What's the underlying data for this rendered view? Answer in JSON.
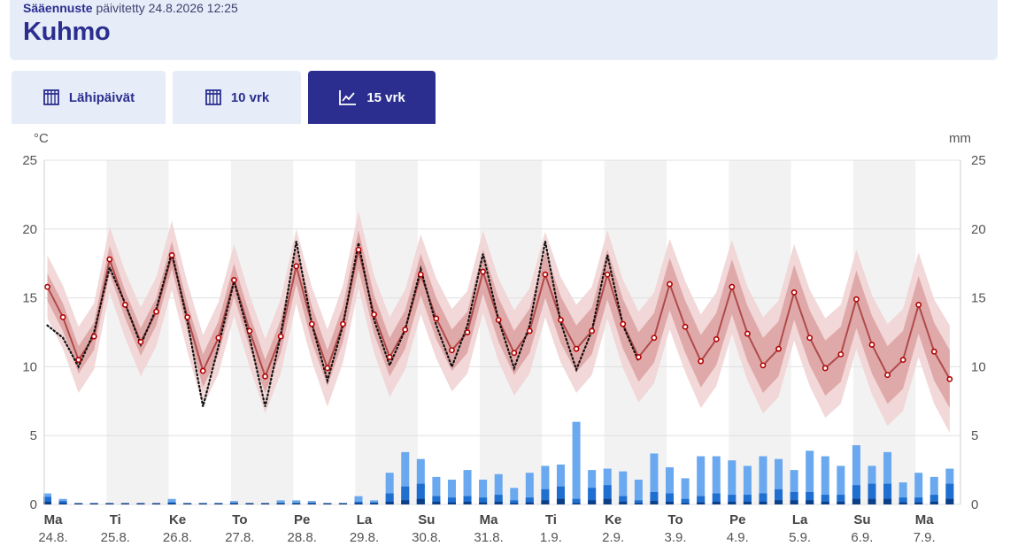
{
  "header": {
    "label": "Sääennuste",
    "updated": "päivitetty 24.8.2026 12:25",
    "location": "Kuhmo"
  },
  "tabs": [
    {
      "label": "Lähipäivät",
      "icon": "calendar-icon",
      "active": false
    },
    {
      "label": "10 vrk",
      "icon": "calendar-icon",
      "active": false
    },
    {
      "label": "15 vrk",
      "icon": "line-chart-icon",
      "active": true
    }
  ],
  "colors": {
    "accent": "#2b2e8f",
    "tab_bg": "#e6edf8",
    "temp_line": "#b04a4a",
    "band_inner": "#d99a9a",
    "band_outer": "#f1d4d4",
    "precip_light": "#6aa8ef",
    "precip_mid": "#1f6fd1",
    "precip_dark": "#0d3f87",
    "weekend_shade": "#f2f2f2"
  },
  "chart_data": {
    "type": "line",
    "left_unit": "°C",
    "right_unit": "mm",
    "ylim": [
      0,
      25
    ],
    "yticks": [
      0,
      5,
      10,
      15,
      20,
      25
    ],
    "grid": true,
    "days": [
      {
        "name": "Ma",
        "date": "24.8."
      },
      {
        "name": "Ti",
        "date": "25.8."
      },
      {
        "name": "Ke",
        "date": "26.8."
      },
      {
        "name": "To",
        "date": "27.8."
      },
      {
        "name": "Pe",
        "date": "28.8."
      },
      {
        "name": "La",
        "date": "29.8."
      },
      {
        "name": "Su",
        "date": "30.8."
      },
      {
        "name": "Ma",
        "date": "31.8."
      },
      {
        "name": "Ti",
        "date": "1.9."
      },
      {
        "name": "Ke",
        "date": "2.9."
      },
      {
        "name": "To",
        "date": "3.9."
      },
      {
        "name": "Pe",
        "date": "4.9."
      },
      {
        "name": "La",
        "date": "5.9."
      },
      {
        "name": "Su",
        "date": "6.9."
      },
      {
        "name": "Ma",
        "date": "7.9."
      }
    ],
    "temperature_median": {
      "x_days": [
        0.05,
        0.3,
        0.55,
        0.8,
        1.05,
        1.3,
        1.55,
        1.8,
        2.05,
        2.3,
        2.55,
        2.8,
        3.05,
        3.3,
        3.55,
        3.8,
        4.05,
        4.3,
        4.55,
        4.8,
        5.05,
        5.3,
        5.55,
        5.8,
        6.05,
        6.3,
        6.55,
        6.8,
        7.05,
        7.3,
        7.55,
        7.8,
        8.05,
        8.3,
        8.55,
        8.8,
        9.05,
        9.3,
        9.55,
        9.8,
        10.05,
        10.3,
        10.55,
        10.8,
        11.05,
        11.3,
        11.55,
        11.8,
        12.05,
        12.3,
        12.55,
        12.8,
        13.05,
        13.3,
        13.55,
        13.8,
        14.05,
        14.3,
        14.55
      ],
      "values": [
        15.8,
        13.6,
        10.5,
        12.2,
        17.8,
        14.5,
        11.8,
        14.0,
        18.1,
        13.6,
        9.7,
        12.1,
        16.3,
        12.6,
        9.3,
        12.2,
        17.3,
        13.1,
        9.9,
        13.1,
        18.5,
        13.8,
        10.7,
        12.7,
        16.7,
        13.5,
        11.2,
        12.5,
        16.9,
        13.4,
        11.0,
        12.6,
        16.7,
        13.4,
        11.3,
        12.6,
        16.7,
        13.1,
        10.7,
        12.1,
        16.0,
        12.9,
        10.4,
        12.0,
        15.8,
        12.4,
        10.1,
        11.3,
        15.4,
        12.1,
        9.9,
        10.9,
        14.9,
        11.6,
        9.4,
        10.5,
        14.5,
        11.1,
        9.1
      ]
    },
    "temperature_observed_dotted": {
      "x_days": [
        0.05,
        0.3,
        0.55,
        0.8,
        1.05,
        1.3,
        1.55,
        1.8,
        2.05,
        2.3,
        2.55,
        2.8,
        3.05,
        3.3,
        3.55,
        3.8,
        4.05,
        4.3,
        4.55,
        4.8,
        5.05,
        5.3,
        5.55,
        5.8,
        6.05,
        6.3,
        6.55,
        6.8,
        7.05,
        7.3,
        7.55,
        7.8,
        8.05,
        8.3,
        8.55,
        8.8,
        9.05,
        9.3,
        9.55
      ],
      "values": [
        13.0,
        12.1,
        10.0,
        12.5,
        17.2,
        14.6,
        11.6,
        14.2,
        18.3,
        13.3,
        7.1,
        11.5,
        16.2,
        12.1,
        7.1,
        12.3,
        19.1,
        13.1,
        9.0,
        13.0,
        19.0,
        13.4,
        10.1,
        12.7,
        17.1,
        13.0,
        10.0,
        13.0,
        18.2,
        13.4,
        9.9,
        13.0,
        19.1,
        13.2,
        9.8,
        12.6,
        18.1,
        13.0,
        10.4
      ]
    },
    "band_inner_halfwidth": [
      1.0,
      1.0,
      1.0,
      1.0,
      1.0,
      1.0,
      1.0,
      1.0,
      1.0,
      1.0,
      1.2,
      1.2,
      1.2,
      1.2,
      1.2,
      1.2,
      1.3,
      1.3,
      1.3,
      1.3,
      1.4,
      1.4,
      1.4,
      1.4,
      1.5,
      1.5,
      1.5,
      1.5,
      1.6,
      1.6,
      1.6,
      1.6,
      1.7,
      1.7,
      1.7,
      1.7,
      1.8,
      1.8,
      1.8,
      1.8,
      1.9,
      1.9,
      1.9,
      1.9,
      2.0,
      2.0,
      2.0,
      2.0,
      2.0,
      2.0,
      2.0,
      2.0,
      2.1,
      2.1,
      2.1,
      2.1,
      2.1,
      2.1,
      2.1
    ],
    "band_outer_halfwidth": [
      2.3,
      2.3,
      2.4,
      2.4,
      2.4,
      2.4,
      2.5,
      2.5,
      2.5,
      2.5,
      2.6,
      2.6,
      2.6,
      2.6,
      2.7,
      2.7,
      2.7,
      2.7,
      2.8,
      2.8,
      2.8,
      2.8,
      2.9,
      2.9,
      2.9,
      2.9,
      3.0,
      3.0,
      3.0,
      3.0,
      3.1,
      3.1,
      3.1,
      3.1,
      3.2,
      3.2,
      3.2,
      3.2,
      3.3,
      3.3,
      3.3,
      3.3,
      3.4,
      3.4,
      3.4,
      3.4,
      3.5,
      3.5,
      3.5,
      3.5,
      3.6,
      3.6,
      3.6,
      3.6,
      3.7,
      3.7,
      3.8,
      3.8,
      3.9
    ],
    "precipitation": {
      "x_days": [
        0.05,
        0.3,
        0.55,
        0.8,
        1.05,
        1.3,
        1.55,
        1.8,
        2.05,
        2.3,
        2.55,
        2.8,
        3.05,
        3.3,
        3.55,
        3.8,
        4.05,
        4.3,
        4.55,
        4.8,
        5.05,
        5.3,
        5.55,
        5.8,
        6.05,
        6.3,
        6.55,
        6.8,
        7.05,
        7.3,
        7.55,
        7.8,
        8.05,
        8.3,
        8.55,
        8.8,
        9.05,
        9.3,
        9.55,
        9.8,
        10.05,
        10.3,
        10.55,
        10.8,
        11.05,
        11.3,
        11.55,
        11.8,
        12.05,
        12.3,
        12.55,
        12.8,
        13.05,
        13.3,
        13.55,
        13.8,
        14.05,
        14.3,
        14.55
      ],
      "high": [
        0.8,
        0.4,
        0.05,
        0.05,
        0.05,
        0.05,
        0.05,
        0.05,
        0.4,
        0.1,
        0.05,
        0.1,
        0.25,
        0.1,
        0.1,
        0.3,
        0.3,
        0.25,
        0.05,
        0.1,
        0.6,
        0.3,
        2.3,
        3.8,
        3.3,
        2.0,
        1.8,
        2.5,
        1.8,
        2.2,
        1.2,
        2.3,
        2.8,
        2.9,
        6.0,
        2.5,
        2.6,
        2.4,
        1.8,
        3.7,
        2.7,
        1.9,
        3.5,
        3.5,
        3.2,
        2.8,
        3.5,
        3.3,
        2.5,
        3.9,
        3.5,
        2.8,
        4.3,
        2.8,
        3.8,
        1.6,
        2.3,
        2.0,
        2.6
      ],
      "mid": [
        0.55,
        0.25,
        0.02,
        0.02,
        0.02,
        0.02,
        0.02,
        0.02,
        0.15,
        0.05,
        0.02,
        0.03,
        0.1,
        0.05,
        0.03,
        0.1,
        0.1,
        0.1,
        0.02,
        0.05,
        0.2,
        0.15,
        0.8,
        1.3,
        1.5,
        0.6,
        0.5,
        0.6,
        0.5,
        0.7,
        0.3,
        0.5,
        1.1,
        1.3,
        0.4,
        1.2,
        1.4,
        0.6,
        0.3,
        0.9,
        0.8,
        0.4,
        0.6,
        0.8,
        0.7,
        0.7,
        0.8,
        1.1,
        0.9,
        0.9,
        0.7,
        0.7,
        1.4,
        1.5,
        1.5,
        0.5,
        0.5,
        0.7,
        1.5
      ],
      "low": [
        0.2,
        0.1,
        0.01,
        0.01,
        0.01,
        0.01,
        0.01,
        0.01,
        0.05,
        0.02,
        0.01,
        0.01,
        0.03,
        0.02,
        0.01,
        0.03,
        0.03,
        0.03,
        0.01,
        0.02,
        0.05,
        0.05,
        0.2,
        0.3,
        0.4,
        0.2,
        0.15,
        0.2,
        0.15,
        0.2,
        0.1,
        0.15,
        0.3,
        0.4,
        0.1,
        0.3,
        0.4,
        0.2,
        0.1,
        0.25,
        0.2,
        0.1,
        0.15,
        0.2,
        0.2,
        0.2,
        0.2,
        0.3,
        0.3,
        0.3,
        0.2,
        0.2,
        0.4,
        0.4,
        0.4,
        0.15,
        0.15,
        0.2,
        0.4
      ]
    }
  }
}
